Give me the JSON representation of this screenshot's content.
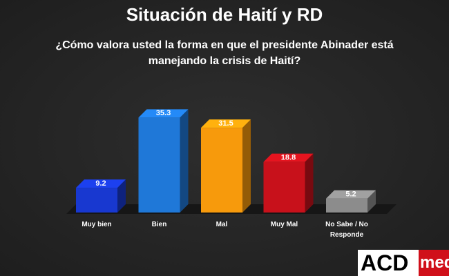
{
  "chart_data": {
    "type": "bar3d",
    "title": "Situación de Haití y RD",
    "subtitle": "¿Cómo valora usted la forma en que el presidente Abinader está manejando la crisis de Haití?",
    "categories": [
      "Muy bien",
      "Bien",
      "Mal",
      "Muy Mal",
      "No Sabe / No Responde"
    ],
    "values": [
      9.2,
      35.3,
      31.5,
      18.8,
      5.2
    ],
    "colors": [
      "#1838d0",
      "#1f78d8",
      "#f79a0c",
      "#c8111b",
      "#8c8c8c"
    ]
  },
  "logo": {
    "main": "ACD",
    "sub": "med"
  }
}
